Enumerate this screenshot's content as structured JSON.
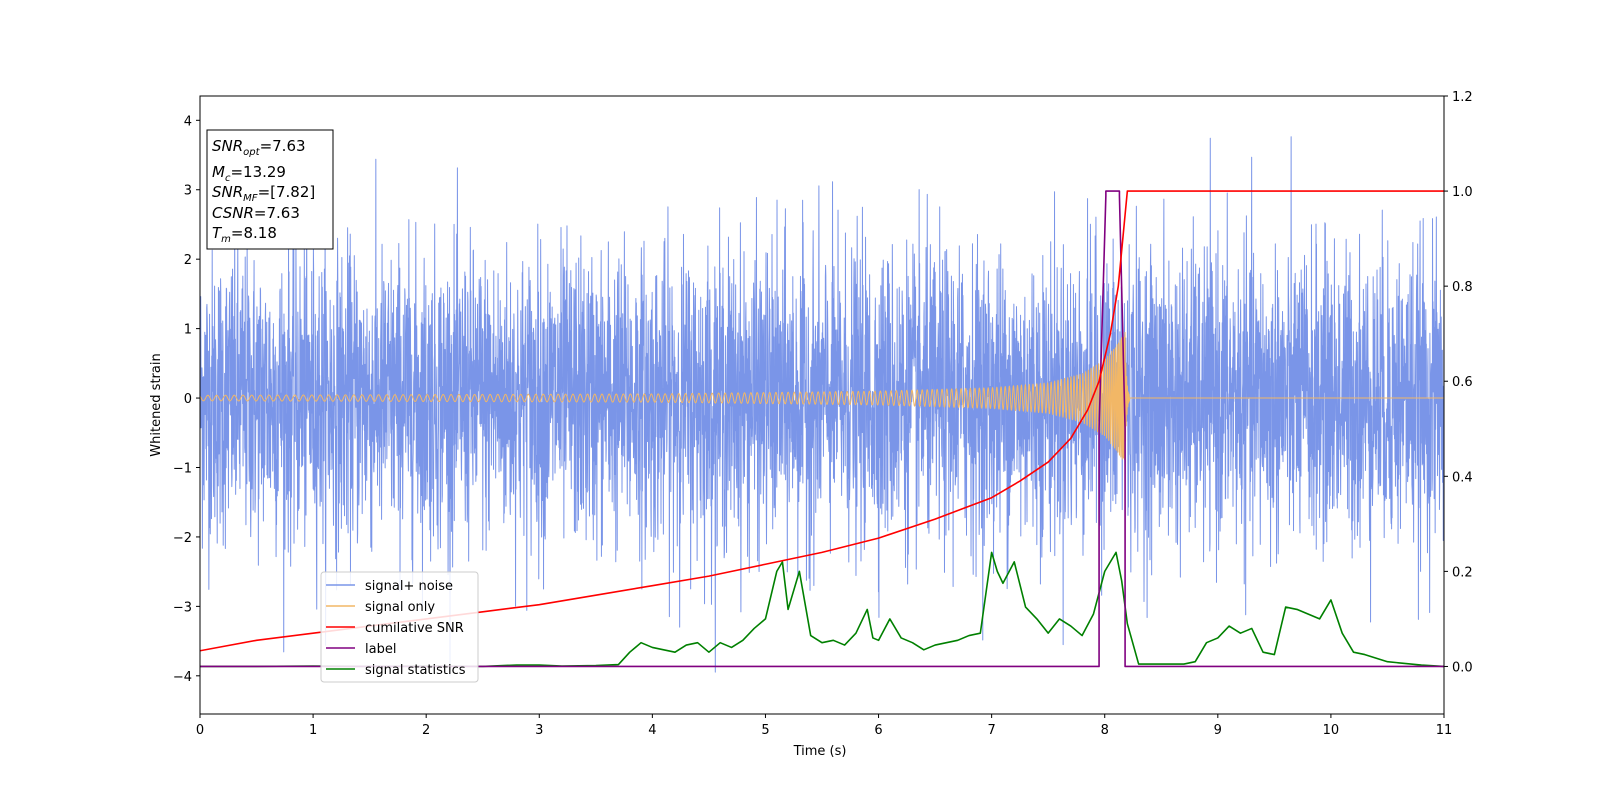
{
  "chart_data": {
    "type": "line",
    "xlabel": "Time (s)",
    "ylabel": "Whitened strain",
    "xlim": [
      0,
      11
    ],
    "ylim": [
      -4.55,
      4.35
    ],
    "y2lim": [
      -0.1,
      1.2
    ],
    "x_ticks": [
      0,
      1,
      2,
      3,
      4,
      5,
      6,
      7,
      8,
      9,
      10,
      11
    ],
    "y_ticks": [
      -4,
      -3,
      -2,
      -1,
      0,
      1,
      2,
      3,
      4
    ],
    "y2_ticks": [
      0.0,
      0.2,
      0.4,
      0.6,
      0.8,
      1.0,
      1.2
    ],
    "legend_position": "lower-left",
    "textbox": {
      "snr_opt": {
        "sym": "SNR",
        "sub": "opt",
        "value": "=7.63"
      },
      "mc": {
        "sym": "M",
        "sub": "c",
        "value": "=13.29"
      },
      "snr_mf": {
        "sym": "SNR",
        "sub": "MF",
        "value": "=[7.82]"
      },
      "csnr": {
        "sym": "CSNR",
        "sub": "",
        "value": "=7.63"
      },
      "tm": {
        "sym": "T",
        "sub": "m",
        "value": "=8.18"
      }
    },
    "series": [
      {
        "name": "signal+ noise",
        "axis": "left",
        "color": "#7a95e8",
        "description": "whitened detector data, Gaussian-like noise spanning roughly -4 to 4",
        "amplitude_range": [
          -4.0,
          4.0
        ]
      },
      {
        "name": "signal only",
        "axis": "left",
        "color": "#f2b766",
        "description": "chirp waveform, amplitude growing toward merger then ringdown to 0",
        "merger_time": 8.18,
        "amplitude_envelope": {
          "x": [
            0,
            2,
            4,
            5,
            6,
            7,
            7.5,
            7.8,
            8.0,
            8.1,
            8.18
          ],
          "y": [
            0.04,
            0.05,
            0.06,
            0.08,
            0.1,
            0.15,
            0.22,
            0.35,
            0.55,
            0.75,
            0.95
          ]
        }
      },
      {
        "name": "cumilative SNR",
        "axis": "right",
        "color": "#ff0000",
        "x": [
          0,
          0.5,
          1,
          1.5,
          2,
          2.5,
          3,
          3.5,
          4,
          4.5,
          5,
          5.5,
          6,
          6.5,
          7,
          7.25,
          7.5,
          7.7,
          7.85,
          7.95,
          8.05,
          8.12,
          8.18,
          8.2,
          9,
          10,
          11
        ],
        "y": [
          0.033,
          0.055,
          0.07,
          0.085,
          0.1,
          0.115,
          0.13,
          0.15,
          0.17,
          0.19,
          0.215,
          0.24,
          0.27,
          0.31,
          0.355,
          0.39,
          0.43,
          0.48,
          0.54,
          0.6,
          0.7,
          0.8,
          0.95,
          1.0,
          1.0,
          1.0,
          1.0
        ]
      },
      {
        "name": "label",
        "axis": "right",
        "color": "#800080",
        "x": [
          0,
          7.95,
          7.95,
          8.01,
          8.01,
          8.13,
          8.13,
          8.18,
          8.18,
          11
        ],
        "y": [
          0,
          0,
          0.5,
          0.99,
          1.0,
          1.0,
          0.99,
          0.5,
          0,
          0
        ]
      },
      {
        "name": "signal statistics",
        "axis": "right",
        "color": "#008000",
        "x": [
          0,
          0.5,
          1,
          1.5,
          2,
          2.5,
          2.8,
          3,
          3.2,
          3.5,
          3.7,
          3.8,
          3.9,
          4.0,
          4.1,
          4.2,
          4.3,
          4.4,
          4.5,
          4.6,
          4.7,
          4.8,
          4.9,
          5.0,
          5.1,
          5.15,
          5.2,
          5.3,
          5.4,
          5.5,
          5.6,
          5.7,
          5.8,
          5.9,
          5.95,
          6.0,
          6.1,
          6.2,
          6.3,
          6.4,
          6.5,
          6.6,
          6.7,
          6.8,
          6.9,
          7.0,
          7.05,
          7.1,
          7.2,
          7.3,
          7.4,
          7.5,
          7.6,
          7.7,
          7.8,
          7.9,
          8.0,
          8.1,
          8.15,
          8.2,
          8.3,
          8.5,
          8.7,
          8.8,
          8.9,
          9.0,
          9.1,
          9.2,
          9.3,
          9.4,
          9.5,
          9.6,
          9.7,
          9.8,
          9.9,
          10.0,
          10.1,
          10.2,
          10.3,
          10.5,
          10.8,
          11
        ],
        "y": [
          0.0,
          0.0,
          0.001,
          0.0,
          0.001,
          0.0,
          0.003,
          0.003,
          0.001,
          0.002,
          0.004,
          0.03,
          0.05,
          0.04,
          0.035,
          0.03,
          0.045,
          0.05,
          0.03,
          0.05,
          0.04,
          0.055,
          0.08,
          0.1,
          0.2,
          0.22,
          0.12,
          0.2,
          0.065,
          0.05,
          0.055,
          0.045,
          0.07,
          0.12,
          0.06,
          0.055,
          0.1,
          0.06,
          0.05,
          0.035,
          0.045,
          0.05,
          0.055,
          0.065,
          0.07,
          0.24,
          0.2,
          0.175,
          0.22,
          0.125,
          0.1,
          0.07,
          0.1,
          0.085,
          0.065,
          0.11,
          0.2,
          0.24,
          0.18,
          0.09,
          0.005,
          0.005,
          0.005,
          0.01,
          0.05,
          0.06,
          0.085,
          0.07,
          0.08,
          0.03,
          0.025,
          0.125,
          0.12,
          0.11,
          0.1,
          0.14,
          0.07,
          0.03,
          0.025,
          0.01,
          0.003,
          0.0
        ]
      }
    ]
  }
}
